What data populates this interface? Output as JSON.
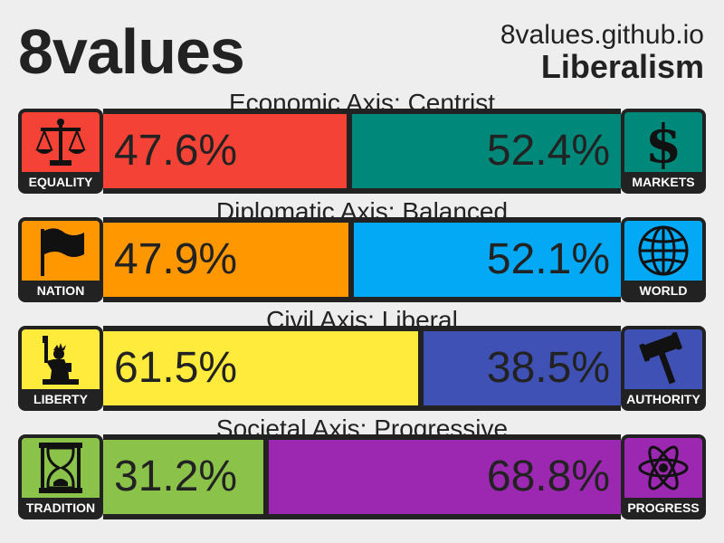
{
  "header": {
    "title": "8values",
    "site": "8values.github.io",
    "ideology": "Liberalism"
  },
  "axes": [
    {
      "label": "Economic Axis: Centrist",
      "left_name": "EQUALITY",
      "left_pct": "47.6%",
      "left_value": 47.6,
      "left_color": "#f44336",
      "left_icon": "scales-icon",
      "right_name": "MARKETS",
      "right_pct": "52.4%",
      "right_value": 52.4,
      "right_color": "#00897b",
      "right_icon": "dollar-icon"
    },
    {
      "label": "Diplomatic Axis: Balanced",
      "left_name": "NATION",
      "left_pct": "47.9%",
      "left_value": 47.9,
      "left_color": "#ff9800",
      "left_icon": "flag-icon",
      "right_name": "WORLD",
      "right_pct": "52.1%",
      "right_value": 52.1,
      "right_color": "#03a9f4",
      "right_icon": "globe-icon"
    },
    {
      "label": "Civil Axis: Liberal",
      "left_name": "LIBERTY",
      "left_pct": "61.5%",
      "left_value": 61.5,
      "left_color": "#ffeb3b",
      "left_icon": "statue-of-liberty-icon",
      "right_name": "AUTHORITY",
      "right_pct": "38.5%",
      "right_value": 38.5,
      "right_color": "#3f51b5",
      "right_icon": "gavel-icon"
    },
    {
      "label": "Societal Axis: Progressive",
      "left_name": "TRADITION",
      "left_pct": "31.2%",
      "left_value": 31.2,
      "left_color": "#8bc34a",
      "left_icon": "hourglass-icon",
      "right_name": "PROGRESS",
      "right_pct": "68.8%",
      "right_value": 68.8,
      "right_color": "#9c27b0",
      "right_icon": "atom-icon"
    }
  ]
}
